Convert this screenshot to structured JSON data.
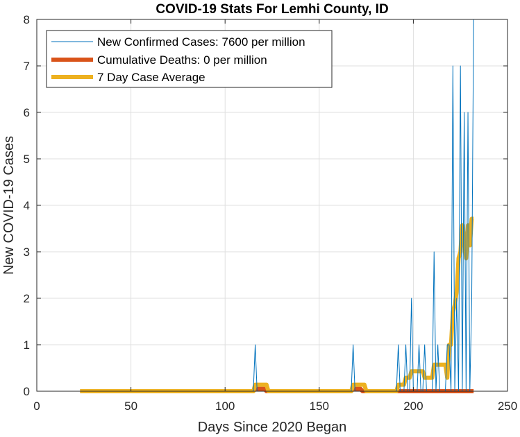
{
  "chart_data": {
    "type": "line",
    "title": "COVID-19 Stats For Lemhi County, ID",
    "xlabel": "Days Since 2020 Began",
    "ylabel": "New COVID-19 Cases",
    "xlim": [
      0,
      250
    ],
    "ylim": [
      0,
      8
    ],
    "xticks": [
      0,
      50,
      100,
      150,
      200,
      250
    ],
    "yticks": [
      0,
      1,
      2,
      3,
      4,
      5,
      6,
      7,
      8
    ],
    "grid": true,
    "legend_position": "top-left",
    "series": [
      {
        "name": "New Confirmed Cases: 7600 per million",
        "color": "#0072BD",
        "line_width": "thin",
        "points": [
          [
            23,
            0
          ],
          [
            115,
            0
          ],
          [
            116,
            1
          ],
          [
            117,
            0
          ],
          [
            167,
            0
          ],
          [
            168,
            1
          ],
          [
            169,
            0
          ],
          [
            191,
            0
          ],
          [
            192,
            1
          ],
          [
            193,
            0
          ],
          [
            195,
            0
          ],
          [
            196,
            1
          ],
          [
            197,
            0
          ],
          [
            198,
            0
          ],
          [
            199,
            2
          ],
          [
            200,
            0
          ],
          [
            202,
            0
          ],
          [
            203,
            1
          ],
          [
            204,
            0
          ],
          [
            205,
            0
          ],
          [
            206,
            1
          ],
          [
            207,
            0
          ],
          [
            210,
            0
          ],
          [
            211,
            3
          ],
          [
            212,
            0
          ],
          [
            213,
            1
          ],
          [
            214,
            0
          ],
          [
            217,
            0
          ],
          [
            218,
            1
          ],
          [
            219,
            1
          ],
          [
            220,
            0
          ],
          [
            221,
            7
          ],
          [
            222,
            0
          ],
          [
            223,
            2
          ],
          [
            224,
            0
          ],
          [
            225,
            7
          ],
          [
            226,
            0
          ],
          [
            227,
            6
          ],
          [
            228,
            0
          ],
          [
            229,
            6
          ],
          [
            230,
            0
          ],
          [
            231,
            2
          ],
          [
            232,
            8
          ]
        ]
      },
      {
        "name": "Cumulative Deaths: 0 per million",
        "color": "#D95319",
        "line_width": "thick",
        "points": [
          [
            23,
            0
          ],
          [
            115,
            0
          ],
          [
            116,
            0.05
          ],
          [
            121,
            0.05
          ],
          [
            122,
            0
          ],
          [
            167,
            0
          ],
          [
            168,
            0.05
          ],
          [
            172,
            0.05
          ],
          [
            173,
            0
          ],
          [
            192,
            0
          ],
          [
            232,
            0
          ]
        ]
      },
      {
        "name": "7 Day Case Average",
        "color": "#EDB120",
        "line_width": "thick",
        "points": [
          [
            23,
            0
          ],
          [
            115,
            0
          ],
          [
            116,
            0.14
          ],
          [
            122,
            0.14
          ],
          [
            123,
            0
          ],
          [
            167,
            0
          ],
          [
            168,
            0.14
          ],
          [
            174,
            0.14
          ],
          [
            175,
            0
          ],
          [
            191,
            0
          ],
          [
            192,
            0.14
          ],
          [
            195,
            0.14
          ],
          [
            196,
            0.29
          ],
          [
            198,
            0.29
          ],
          [
            199,
            0.43
          ],
          [
            205,
            0.43
          ],
          [
            206,
            0.29
          ],
          [
            210,
            0.29
          ],
          [
            211,
            0.57
          ],
          [
            217,
            0.57
          ],
          [
            218,
            0.29
          ],
          [
            219,
            1.0
          ],
          [
            220,
            1.0
          ],
          [
            221,
            1.71
          ],
          [
            222,
            1.86
          ],
          [
            223,
            2.14
          ],
          [
            224,
            2.86
          ],
          [
            225,
            3.0
          ],
          [
            226,
            3.57
          ],
          [
            227,
            3.29
          ],
          [
            228,
            2.86
          ],
          [
            229,
            3.57
          ],
          [
            230,
            3.14
          ],
          [
            231,
            3.71
          ],
          [
            232,
            3.71
          ]
        ]
      }
    ]
  }
}
